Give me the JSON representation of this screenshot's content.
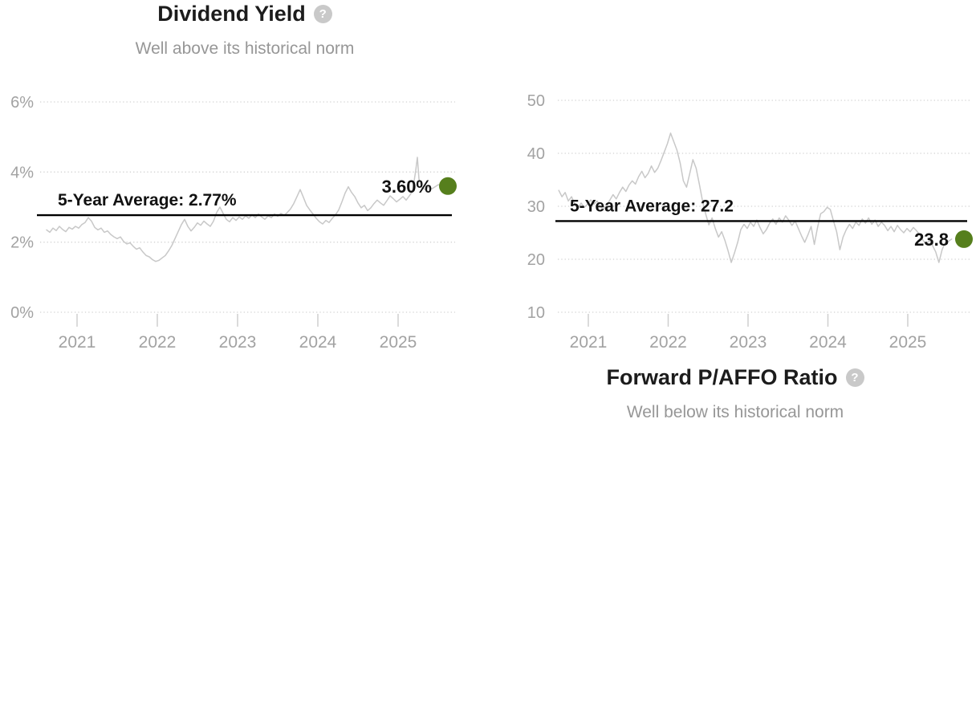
{
  "colors": {
    "title": "#1c1c1c",
    "subtitle": "#979797",
    "axis_label": "#a2a2a2",
    "grid_line": "#d2d2d2",
    "tick_mark": "#cfcfcf",
    "series_line": "#c8c8c8",
    "average_line": "#000000",
    "annotation_text": "#111111",
    "current_dot_green": "#567f1d",
    "help_icon_bg": "#c9c9c9",
    "help_icon_fg": "#ffffff"
  },
  "chart_data": [
    {
      "type": "line",
      "title": "Dividend Yield",
      "subtitle": "Well above its historical norm",
      "help_glyph": "?",
      "series_name": "Dividend Yield",
      "average_label": "5-Year Average: 2.77%",
      "average_value": 2.77,
      "current_label": "3.60%",
      "current_value": 3.6,
      "ylim": [
        0,
        6
      ],
      "grid": "dotted horizontal",
      "legend": "none",
      "yticks": [
        {
          "v": 0,
          "label": "0%"
        },
        {
          "v": 2,
          "label": "2%"
        },
        {
          "v": 4,
          "label": "4%"
        },
        {
          "v": 6,
          "label": "6%"
        }
      ],
      "xticks": [
        {
          "v": 2021,
          "label": "2021"
        },
        {
          "v": 2022,
          "label": "2022"
        },
        {
          "v": 2023,
          "label": "2023"
        },
        {
          "v": 2024,
          "label": "2024"
        },
        {
          "v": 2025,
          "label": "2025"
        }
      ],
      "points": [
        [
          2020.62,
          2.35
        ],
        [
          2020.66,
          2.28
        ],
        [
          2020.7,
          2.4
        ],
        [
          2020.74,
          2.33
        ],
        [
          2020.78,
          2.45
        ],
        [
          2020.82,
          2.36
        ],
        [
          2020.86,
          2.3
        ],
        [
          2020.9,
          2.42
        ],
        [
          2020.94,
          2.37
        ],
        [
          2020.98,
          2.45
        ],
        [
          2021.02,
          2.4
        ],
        [
          2021.06,
          2.5
        ],
        [
          2021.1,
          2.56
        ],
        [
          2021.14,
          2.7
        ],
        [
          2021.18,
          2.6
        ],
        [
          2021.22,
          2.42
        ],
        [
          2021.26,
          2.35
        ],
        [
          2021.3,
          2.4
        ],
        [
          2021.34,
          2.28
        ],
        [
          2021.38,
          2.32
        ],
        [
          2021.42,
          2.22
        ],
        [
          2021.46,
          2.15
        ],
        [
          2021.5,
          2.1
        ],
        [
          2021.54,
          2.15
        ],
        [
          2021.58,
          2.02
        ],
        [
          2021.62,
          1.95
        ],
        [
          2021.66,
          1.98
        ],
        [
          2021.7,
          1.88
        ],
        [
          2021.74,
          1.8
        ],
        [
          2021.78,
          1.84
        ],
        [
          2021.82,
          1.72
        ],
        [
          2021.86,
          1.62
        ],
        [
          2021.9,
          1.58
        ],
        [
          2021.94,
          1.5
        ],
        [
          2021.98,
          1.45
        ],
        [
          2022.02,
          1.48
        ],
        [
          2022.06,
          1.55
        ],
        [
          2022.1,
          1.62
        ],
        [
          2022.14,
          1.75
        ],
        [
          2022.18,
          1.9
        ],
        [
          2022.22,
          2.1
        ],
        [
          2022.26,
          2.3
        ],
        [
          2022.3,
          2.5
        ],
        [
          2022.34,
          2.65
        ],
        [
          2022.38,
          2.45
        ],
        [
          2022.42,
          2.32
        ],
        [
          2022.46,
          2.42
        ],
        [
          2022.5,
          2.55
        ],
        [
          2022.54,
          2.48
        ],
        [
          2022.58,
          2.6
        ],
        [
          2022.62,
          2.52
        ],
        [
          2022.66,
          2.45
        ],
        [
          2022.7,
          2.6
        ],
        [
          2022.74,
          2.85
        ],
        [
          2022.78,
          3.0
        ],
        [
          2022.82,
          2.82
        ],
        [
          2022.86,
          2.65
        ],
        [
          2022.9,
          2.58
        ],
        [
          2022.94,
          2.7
        ],
        [
          2022.98,
          2.62
        ],
        [
          2023.02,
          2.72
        ],
        [
          2023.06,
          2.65
        ],
        [
          2023.1,
          2.75
        ],
        [
          2023.14,
          2.68
        ],
        [
          2023.18,
          2.78
        ],
        [
          2023.22,
          2.7
        ],
        [
          2023.26,
          2.8
        ],
        [
          2023.3,
          2.72
        ],
        [
          2023.34,
          2.65
        ],
        [
          2023.38,
          2.75
        ],
        [
          2023.42,
          2.7
        ],
        [
          2023.46,
          2.8
        ],
        [
          2023.5,
          2.74
        ],
        [
          2023.54,
          2.82
        ],
        [
          2023.58,
          2.76
        ],
        [
          2023.62,
          2.85
        ],
        [
          2023.66,
          2.95
        ],
        [
          2023.7,
          3.1
        ],
        [
          2023.74,
          3.3
        ],
        [
          2023.78,
          3.5
        ],
        [
          2023.82,
          3.28
        ],
        [
          2023.86,
          3.05
        ],
        [
          2023.9,
          2.92
        ],
        [
          2023.94,
          2.8
        ],
        [
          2023.98,
          2.68
        ],
        [
          2024.02,
          2.58
        ],
        [
          2024.06,
          2.52
        ],
        [
          2024.1,
          2.62
        ],
        [
          2024.14,
          2.56
        ],
        [
          2024.18,
          2.68
        ],
        [
          2024.22,
          2.78
        ],
        [
          2024.26,
          2.92
        ],
        [
          2024.3,
          3.15
        ],
        [
          2024.34,
          3.4
        ],
        [
          2024.38,
          3.58
        ],
        [
          2024.42,
          3.42
        ],
        [
          2024.46,
          3.3
        ],
        [
          2024.5,
          3.12
        ],
        [
          2024.54,
          2.98
        ],
        [
          2024.58,
          3.05
        ],
        [
          2024.62,
          2.9
        ],
        [
          2024.66,
          2.98
        ],
        [
          2024.7,
          3.1
        ],
        [
          2024.74,
          3.2
        ],
        [
          2024.78,
          3.12
        ],
        [
          2024.82,
          3.05
        ],
        [
          2024.86,
          3.18
        ],
        [
          2024.9,
          3.32
        ],
        [
          2024.94,
          3.24
        ],
        [
          2024.98,
          3.15
        ],
        [
          2025.02,
          3.22
        ],
        [
          2025.06,
          3.3
        ],
        [
          2025.1,
          3.2
        ],
        [
          2025.14,
          3.32
        ],
        [
          2025.18,
          3.45
        ],
        [
          2025.22,
          4.05
        ],
        [
          2025.24,
          4.42
        ],
        [
          2025.26,
          3.8
        ],
        [
          2025.3,
          3.55
        ],
        [
          2025.34,
          3.5
        ],
        [
          2025.38,
          3.58
        ],
        [
          2025.42,
          3.52
        ],
        [
          2025.46,
          3.58
        ],
        [
          2025.5,
          3.64
        ],
        [
          2025.54,
          3.62
        ],
        [
          2025.58,
          3.6
        ]
      ]
    },
    {
      "type": "line",
      "title": "Forward P/AFFO Ratio",
      "subtitle": "Well below its historical norm",
      "help_glyph": "?",
      "series_name": "Forward P/AFFO Ratio",
      "average_label": "5-Year Average: 27.2",
      "average_value": 27.2,
      "current_label": "23.8",
      "current_value": 23.8,
      "ylim": [
        10,
        50
      ],
      "grid": "dotted horizontal",
      "legend": "none",
      "yticks": [
        {
          "v": 10,
          "label": "10"
        },
        {
          "v": 20,
          "label": "20"
        },
        {
          "v": 30,
          "label": "30"
        },
        {
          "v": 40,
          "label": "40"
        },
        {
          "v": 50,
          "label": "50"
        }
      ],
      "xticks": [
        {
          "v": 2021,
          "label": "2021"
        },
        {
          "v": 2022,
          "label": "2022"
        },
        {
          "v": 2023,
          "label": "2023"
        },
        {
          "v": 2024,
          "label": "2024"
        },
        {
          "v": 2025,
          "label": "2025"
        }
      ],
      "points": [
        [
          2020.63,
          33.0
        ],
        [
          2020.67,
          31.8
        ],
        [
          2020.71,
          32.6
        ],
        [
          2020.75,
          31.0
        ],
        [
          2020.79,
          31.8
        ],
        [
          2020.83,
          30.4
        ],
        [
          2020.87,
          29.6
        ],
        [
          2020.91,
          30.6
        ],
        [
          2020.95,
          29.8
        ],
        [
          2020.99,
          30.4
        ],
        [
          2021.03,
          31.2
        ],
        [
          2021.07,
          30.4
        ],
        [
          2021.11,
          31.0
        ],
        [
          2021.15,
          30.0
        ],
        [
          2021.19,
          29.4
        ],
        [
          2021.23,
          30.2
        ],
        [
          2021.27,
          31.2
        ],
        [
          2021.31,
          32.2
        ],
        [
          2021.35,
          31.4
        ],
        [
          2021.39,
          32.6
        ],
        [
          2021.43,
          33.6
        ],
        [
          2021.47,
          32.8
        ],
        [
          2021.51,
          34.0
        ],
        [
          2021.55,
          34.8
        ],
        [
          2021.59,
          34.2
        ],
        [
          2021.63,
          35.6
        ],
        [
          2021.67,
          36.6
        ],
        [
          2021.71,
          35.4
        ],
        [
          2021.75,
          36.2
        ],
        [
          2021.79,
          37.6
        ],
        [
          2021.83,
          36.4
        ],
        [
          2021.87,
          37.2
        ],
        [
          2021.91,
          38.6
        ],
        [
          2021.95,
          40.2
        ],
        [
          2021.99,
          41.8
        ],
        [
          2022.03,
          43.8
        ],
        [
          2022.07,
          42.2
        ],
        [
          2022.11,
          40.6
        ],
        [
          2022.15,
          38.2
        ],
        [
          2022.19,
          34.8
        ],
        [
          2022.23,
          33.6
        ],
        [
          2022.27,
          36.2
        ],
        [
          2022.31,
          38.8
        ],
        [
          2022.35,
          37.2
        ],
        [
          2022.39,
          34.2
        ],
        [
          2022.43,
          31.0
        ],
        [
          2022.47,
          28.5
        ],
        [
          2022.51,
          26.5
        ],
        [
          2022.55,
          27.8
        ],
        [
          2022.59,
          25.8
        ],
        [
          2022.63,
          24.2
        ],
        [
          2022.67,
          25.2
        ],
        [
          2022.71,
          23.6
        ],
        [
          2022.75,
          21.6
        ],
        [
          2022.79,
          19.4
        ],
        [
          2022.83,
          21.2
        ],
        [
          2022.87,
          23.2
        ],
        [
          2022.91,
          25.6
        ],
        [
          2022.95,
          26.6
        ],
        [
          2022.99,
          25.8
        ],
        [
          2023.03,
          27.0
        ],
        [
          2023.07,
          26.2
        ],
        [
          2023.11,
          27.4
        ],
        [
          2023.15,
          26.0
        ],
        [
          2023.19,
          24.8
        ],
        [
          2023.23,
          25.6
        ],
        [
          2023.27,
          26.8
        ],
        [
          2023.31,
          27.6
        ],
        [
          2023.35,
          26.6
        ],
        [
          2023.39,
          27.8
        ],
        [
          2023.43,
          27.0
        ],
        [
          2023.47,
          28.2
        ],
        [
          2023.51,
          27.4
        ],
        [
          2023.55,
          26.4
        ],
        [
          2023.59,
          27.2
        ],
        [
          2023.63,
          25.8
        ],
        [
          2023.67,
          24.4
        ],
        [
          2023.71,
          23.2
        ],
        [
          2023.75,
          24.6
        ],
        [
          2023.79,
          26.2
        ],
        [
          2023.83,
          22.8
        ],
        [
          2023.87,
          26.0
        ],
        [
          2023.91,
          28.6
        ],
        [
          2023.95,
          29.0
        ],
        [
          2023.99,
          29.8
        ],
        [
          2024.03,
          29.4
        ],
        [
          2024.07,
          27.2
        ],
        [
          2024.11,
          25.2
        ],
        [
          2024.15,
          21.8
        ],
        [
          2024.19,
          24.2
        ],
        [
          2024.23,
          25.6
        ],
        [
          2024.27,
          26.6
        ],
        [
          2024.31,
          25.8
        ],
        [
          2024.35,
          27.0
        ],
        [
          2024.39,
          26.4
        ],
        [
          2024.43,
          27.6
        ],
        [
          2024.47,
          26.8
        ],
        [
          2024.51,
          27.8
        ],
        [
          2024.55,
          26.6
        ],
        [
          2024.59,
          27.4
        ],
        [
          2024.63,
          26.2
        ],
        [
          2024.67,
          27.0
        ],
        [
          2024.71,
          26.4
        ],
        [
          2024.75,
          25.4
        ],
        [
          2024.79,
          26.2
        ],
        [
          2024.83,
          25.2
        ],
        [
          2024.87,
          26.4
        ],
        [
          2024.91,
          25.6
        ],
        [
          2024.95,
          25.0
        ],
        [
          2024.99,
          25.8
        ],
        [
          2025.03,
          25.2
        ],
        [
          2025.07,
          26.0
        ],
        [
          2025.11,
          25.4
        ],
        [
          2025.15,
          24.6
        ],
        [
          2025.19,
          23.6
        ],
        [
          2025.23,
          22.8
        ],
        [
          2025.27,
          23.6
        ],
        [
          2025.31,
          22.6
        ],
        [
          2025.35,
          21.4
        ],
        [
          2025.39,
          19.4
        ],
        [
          2025.43,
          21.8
        ],
        [
          2025.47,
          23.2
        ],
        [
          2025.51,
          23.4
        ],
        [
          2025.55,
          23.8
        ]
      ]
    }
  ]
}
